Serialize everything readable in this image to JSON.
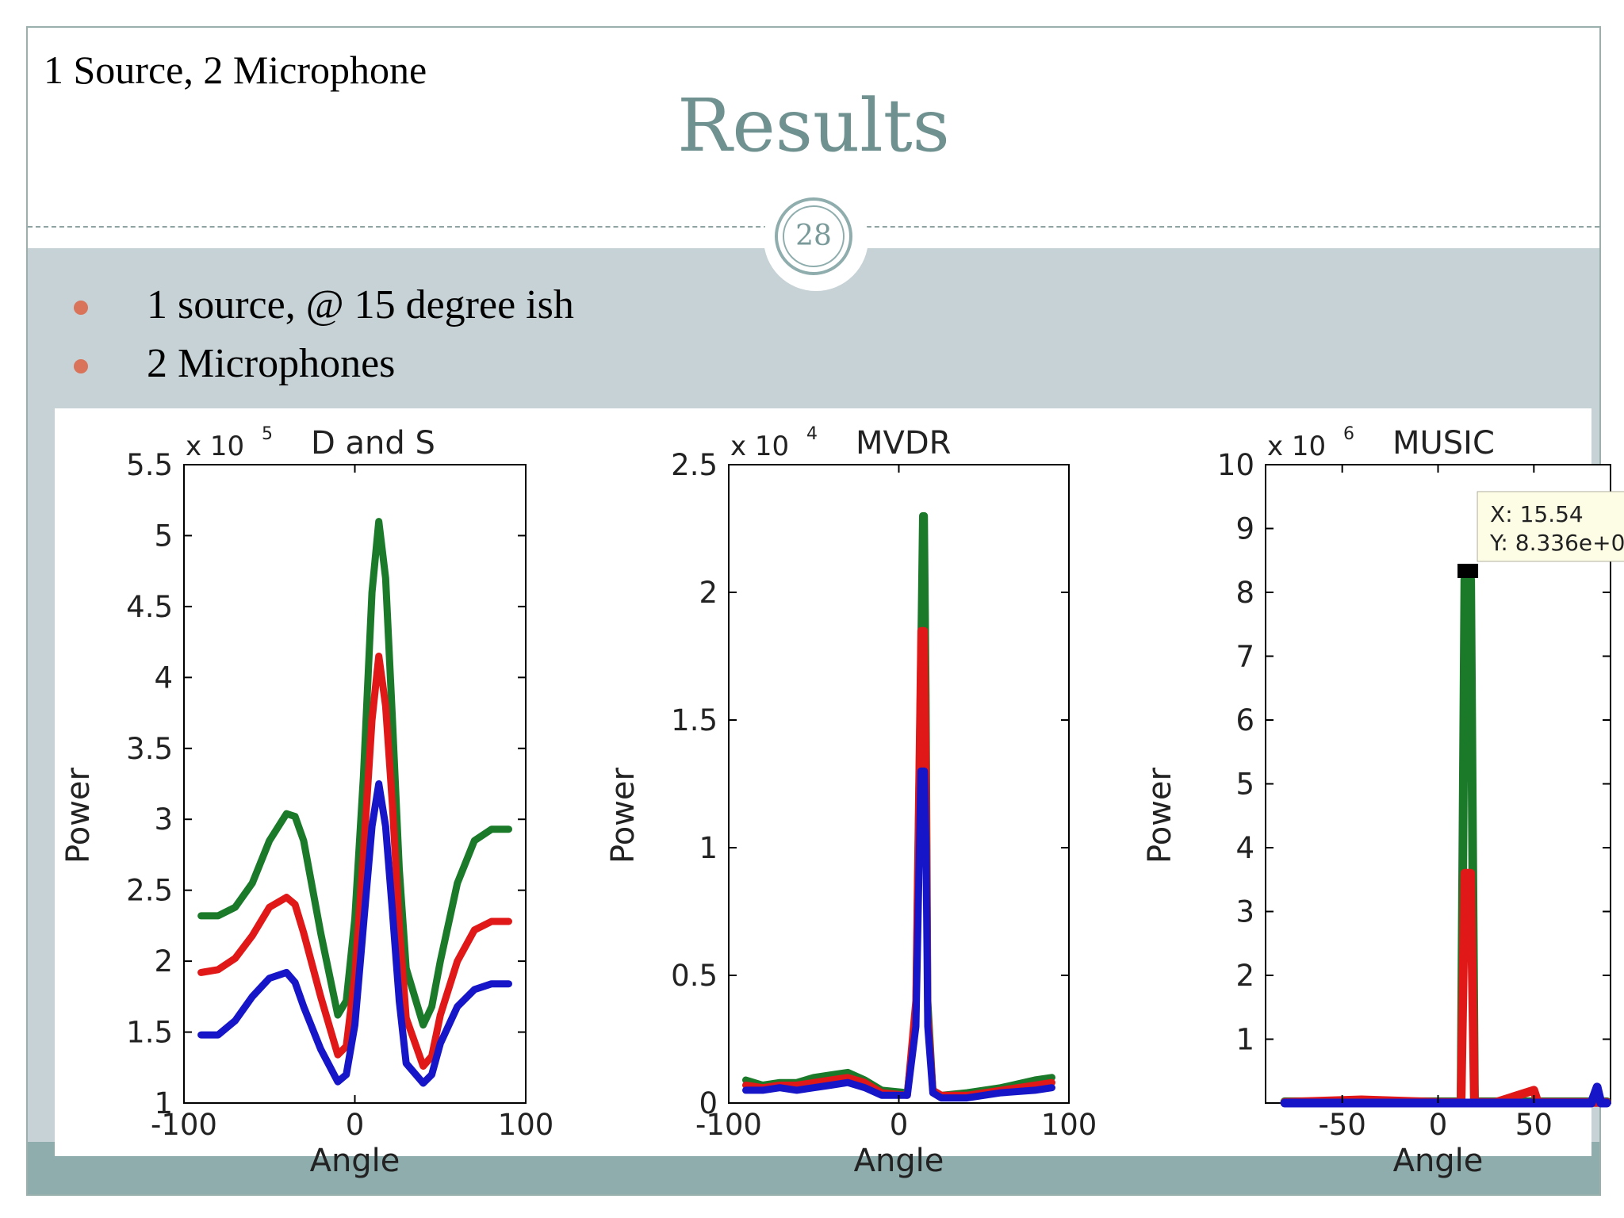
{
  "slide": {
    "corner_label": "1 Source, 2 Microphone",
    "title": "Results",
    "page_number": "28",
    "bullets": [
      "1 source, @ 15  degree ish",
      "2 Microphones"
    ]
  },
  "colors": {
    "title": "#6f9190",
    "accent_band": "#c6d2d6",
    "footer_band": "#8fadad",
    "bullet_dot": "#d9735a",
    "series": [
      "#1a7a2a",
      "#e01818",
      "#1616c8"
    ]
  },
  "chart_data": [
    {
      "type": "line",
      "title": "D and S",
      "multiplier": "x 10^5",
      "multiplier_base": "x 10",
      "multiplier_exp": "5",
      "xlabel": "Angle",
      "ylabel": "Power",
      "xlim": [
        -100,
        100
      ],
      "ylim": [
        1,
        5.5
      ],
      "xticks": [
        -100,
        0,
        100
      ],
      "xtick_labels": [
        "-100",
        "0",
        "100"
      ],
      "yticks": [
        1,
        1.5,
        2,
        2.5,
        3,
        3.5,
        4,
        4.5,
        5,
        5.5
      ],
      "ytick_labels": [
        "1",
        "1.5",
        "2",
        "2.5",
        "3",
        "3.5",
        "4",
        "4.5",
        "5",
        "5.5"
      ],
      "x": [
        -90,
        -80,
        -70,
        -60,
        -50,
        -40,
        -35,
        -30,
        -20,
        -10,
        -5,
        0,
        5,
        10,
        14,
        18,
        22,
        26,
        30,
        40,
        45,
        50,
        60,
        70,
        80,
        90
      ],
      "series": [
        {
          "values": [
            2.32,
            2.32,
            2.38,
            2.55,
            2.85,
            3.04,
            3.02,
            2.85,
            2.2,
            1.62,
            1.72,
            2.3,
            3.3,
            4.6,
            5.1,
            4.7,
            3.7,
            2.65,
            1.95,
            1.55,
            1.68,
            2.0,
            2.55,
            2.85,
            2.93,
            2.93
          ]
        },
        {
          "values": [
            1.92,
            1.94,
            2.02,
            2.18,
            2.38,
            2.45,
            2.4,
            2.2,
            1.75,
            1.34,
            1.4,
            1.9,
            2.75,
            3.7,
            4.15,
            3.8,
            3.1,
            2.25,
            1.6,
            1.26,
            1.33,
            1.62,
            2.0,
            2.22,
            2.28,
            2.28
          ]
        },
        {
          "values": [
            1.48,
            1.48,
            1.58,
            1.75,
            1.88,
            1.92,
            1.85,
            1.68,
            1.38,
            1.15,
            1.2,
            1.55,
            2.25,
            2.95,
            3.25,
            2.95,
            2.35,
            1.72,
            1.28,
            1.14,
            1.2,
            1.42,
            1.68,
            1.8,
            1.84,
            1.84
          ]
        }
      ]
    },
    {
      "type": "line",
      "title": "MVDR",
      "multiplier": "x 10^4",
      "multiplier_base": "x 10",
      "multiplier_exp": "4",
      "xlabel": "Angle",
      "ylabel": "Power",
      "xlim": [
        -100,
        100
      ],
      "ylim": [
        0,
        2.5
      ],
      "xticks": [
        -100,
        0,
        100
      ],
      "xtick_labels": [
        "-100",
        "0",
        "100"
      ],
      "yticks": [
        0,
        0.5,
        1,
        1.5,
        2,
        2.5
      ],
      "ytick_labels": [
        "0",
        "0.5",
        "1",
        "1.5",
        "2",
        "2.5"
      ],
      "x": [
        -90,
        -80,
        -70,
        -60,
        -50,
        -40,
        -30,
        -20,
        -10,
        5,
        10,
        13,
        14,
        15,
        16,
        17,
        20,
        25,
        40,
        60,
        80,
        90
      ],
      "series": [
        {
          "values": [
            0.09,
            0.07,
            0.08,
            0.08,
            0.1,
            0.11,
            0.12,
            0.09,
            0.05,
            0.04,
            0.35,
            1.8,
            2.3,
            2.3,
            1.6,
            0.4,
            0.05,
            0.03,
            0.04,
            0.06,
            0.09,
            0.1
          ]
        },
        {
          "values": [
            0.07,
            0.06,
            0.07,
            0.07,
            0.08,
            0.09,
            0.1,
            0.08,
            0.04,
            0.03,
            0.4,
            1.85,
            1.85,
            1.85,
            1.35,
            0.35,
            0.05,
            0.03,
            0.03,
            0.05,
            0.07,
            0.08
          ]
        },
        {
          "values": [
            0.05,
            0.05,
            0.06,
            0.05,
            0.06,
            0.07,
            0.08,
            0.06,
            0.03,
            0.03,
            0.3,
            1.3,
            1.3,
            1.3,
            1.0,
            0.3,
            0.04,
            0.02,
            0.02,
            0.04,
            0.05,
            0.06
          ]
        }
      ]
    },
    {
      "type": "line",
      "title": "MUSIC",
      "multiplier": "x 10^6",
      "multiplier_base": "x 10",
      "multiplier_exp": "6",
      "xlabel": "Angle",
      "ylabel": "Power",
      "xlim": [
        -90,
        90
      ],
      "ylim": [
        0,
        10
      ],
      "xticks": [
        -50,
        0,
        50
      ],
      "xtick_labels": [
        "-50",
        "0",
        "50"
      ],
      "yticks": [
        1,
        2,
        3,
        4,
        5,
        6,
        7,
        8,
        9,
        10
      ],
      "ytick_labels": [
        "1",
        "2",
        "3",
        "4",
        "5",
        "6",
        "7",
        "8",
        "9",
        "10"
      ],
      "x": [
        -80,
        -40,
        0,
        12,
        14,
        15.54,
        17,
        19,
        30,
        50,
        52,
        70,
        80,
        83,
        85,
        88
      ],
      "series": [
        {
          "values": [
            0.02,
            0.02,
            0.02,
            0.02,
            8.2,
            8.336,
            8.2,
            0.02,
            0.02,
            0.02,
            0.02,
            0.02,
            0.02,
            0.02,
            0.02,
            0.02
          ]
        },
        {
          "values": [
            0.01,
            0.05,
            0.01,
            0.01,
            3.6,
            3.6,
            3.6,
            0.01,
            0.01,
            0.2,
            0.01,
            0.01,
            0.01,
            0.01,
            0.01,
            0.01
          ]
        },
        {
          "values": [
            0.0,
            0.0,
            0.0,
            0.0,
            0.0,
            0.0,
            0.0,
            0.0,
            0.0,
            0.0,
            0.0,
            0.0,
            0.0,
            0.25,
            0.0,
            0.0
          ]
        }
      ],
      "datatip": {
        "x": 15.54,
        "y": 8.336,
        "line1": "X: 15.54",
        "line2": "Y: 8.336e+0"
      }
    }
  ]
}
